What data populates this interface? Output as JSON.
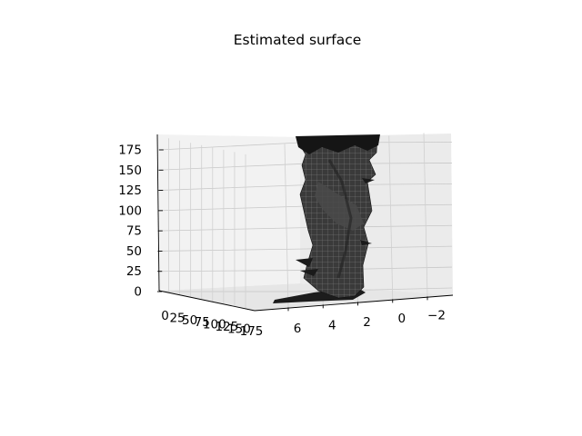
{
  "chart_data": {
    "type": "surface",
    "title": "Estimated surface",
    "xlabel": "",
    "ylabel": "",
    "zlabel": "",
    "x_axis": {
      "ticks": [
        6,
        4,
        2,
        0,
        -2
      ],
      "tick_labels": [
        "6",
        "4",
        "2",
        "0",
        "−2"
      ]
    },
    "y_axis": {
      "ticks": [
        0,
        25,
        50,
        75,
        100,
        125,
        150,
        175
      ],
      "tick_labels": [
        "0",
        "25",
        "50",
        "75",
        "100",
        "125",
        "150",
        "175"
      ]
    },
    "z_axis": {
      "ticks": [
        0,
        25,
        50,
        75,
        100,
        125,
        150,
        175
      ],
      "tick_labels": [
        "0",
        "25",
        "50",
        "75",
        "100",
        "125",
        "150",
        "175"
      ]
    },
    "grid": true,
    "surface_color": "#3a3a3a",
    "edge_color": "#8a8a8a"
  }
}
